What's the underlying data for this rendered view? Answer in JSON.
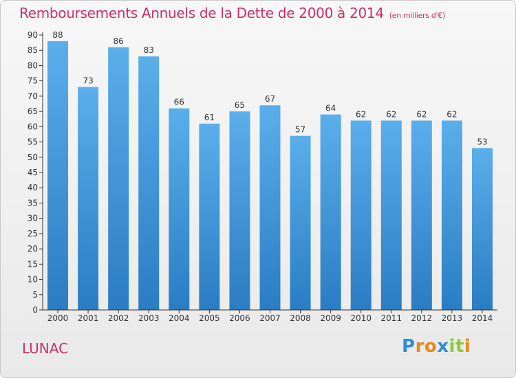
{
  "title": "Remboursements Annuels de la Dette de 2000 à 2014",
  "unit_note": "(en milliers d'€)",
  "commune": "LUNAC",
  "logo": {
    "text": "Proxiti",
    "letters": [
      "P",
      "r",
      "o",
      "x",
      "i",
      "t",
      "i"
    ]
  },
  "colors": {
    "title": "#c8306a",
    "bar_light": "#5aaeea",
    "bar_dark": "#2a7dc3",
    "axis": "#333333"
  },
  "chart_data": {
    "type": "bar",
    "categories": [
      "2000",
      "2001",
      "2002",
      "2003",
      "2004",
      "2005",
      "2006",
      "2007",
      "2008",
      "2009",
      "2010",
      "2011",
      "2012",
      "2013",
      "2014"
    ],
    "values": [
      88,
      73,
      86,
      83,
      66,
      61,
      65,
      67,
      57,
      64,
      62,
      62,
      62,
      62,
      53
    ],
    "title": "Remboursements Annuels de la Dette de 2000 à 2014",
    "xlabel": "",
    "ylabel": "",
    "ylim": [
      0,
      90
    ],
    "ytick_step": 5,
    "grid": false,
    "data_labels": true
  }
}
